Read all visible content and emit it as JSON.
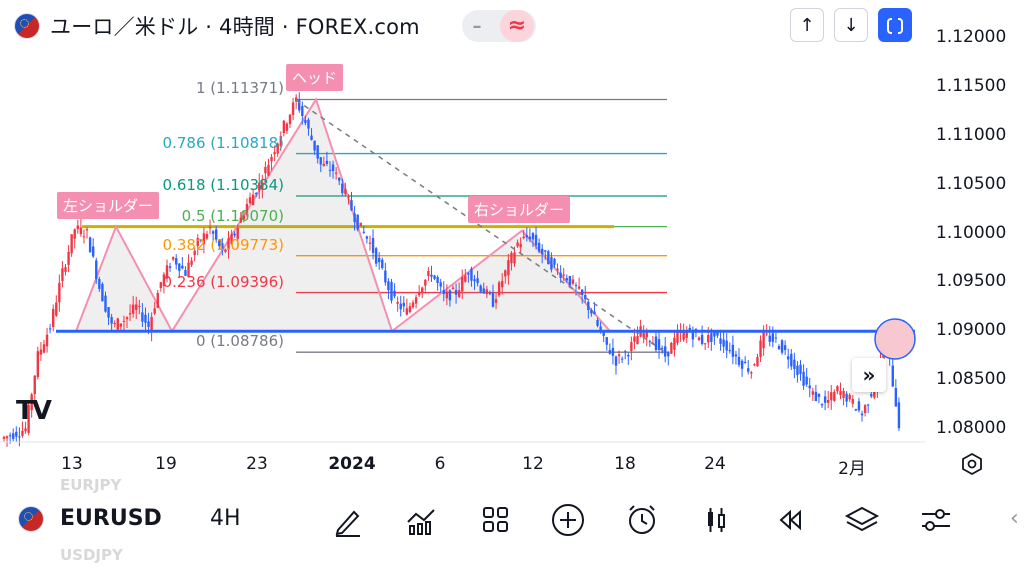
{
  "header": {
    "title": "ユーロ／米ドル · 4時間 · FOREX.com",
    "minus_icon": "minus-icon",
    "wave_icon": "approx-icon",
    "buttons": [
      {
        "name": "arrow-up-button",
        "glyph": "↑"
      },
      {
        "name": "arrow-down-button",
        "glyph": "↓"
      },
      {
        "name": "fullscreen-button",
        "glyph": "⛶"
      }
    ]
  },
  "price_axis": [
    "1.12000",
    "1.11500",
    "1.11000",
    "1.10500",
    "1.10000",
    "1.09500",
    "1.09000",
    "1.08500",
    "1.08000"
  ],
  "time_axis": [
    {
      "label": "13",
      "bold": false
    },
    {
      "label": "19",
      "bold": false
    },
    {
      "label": "23",
      "bold": false
    },
    {
      "label": "2024",
      "bold": true
    },
    {
      "label": "6",
      "bold": false
    },
    {
      "label": "12",
      "bold": false
    },
    {
      "label": "18",
      "bold": false
    },
    {
      "label": "24",
      "bold": false
    },
    {
      "label": "2月",
      "bold": false
    }
  ],
  "annotations": {
    "left_shoulder": "左ショルダー",
    "head": "ヘッド",
    "right_shoulder": "右ショルダー"
  },
  "fibonacci": [
    {
      "label": "1 (1.11371)",
      "color": "#787b86"
    },
    {
      "label": "0.786 (1.10818)",
      "color": "#26a9c4"
    },
    {
      "label": "0.618 (1.10384)",
      "color": "#089981"
    },
    {
      "label": "0.5 (1.10070)",
      "color": "#4caf50"
    },
    {
      "label": "0.382 (1.09773)",
      "color": "#ff9800"
    },
    {
      "label": "0.236 (1.09396)",
      "color": "#f23645"
    },
    {
      "label": "0 (1.08786)",
      "color": "#787b86"
    }
  ],
  "colors": {
    "neckline": "#2962ff",
    "up_candle": "#f23645",
    "down_candle": "#2962ff",
    "pattern": "#f48fb1"
  },
  "bottom_bar": {
    "symbol": "EURUSD",
    "timeframe": "4H",
    "ghost_top": "EURJPY",
    "ghost_bottom": "USDJPY",
    "icons": [
      "draw-pen-icon",
      "indicators-icon",
      "layouts-grid-icon",
      "add-icon",
      "alert-clock-icon",
      "chart-type-candle-icon",
      "replay-icon",
      "layers-icon",
      "settings-sliders-icon"
    ]
  },
  "chart_data": {
    "type": "candlestick",
    "title": "ユーロ／米ドル · 4時間 · FOREX.com",
    "xlabel": "",
    "ylabel": "",
    "ylim": [
      1.0785,
      1.122
    ],
    "x_ticks": [
      "13",
      "19",
      "23",
      "2024",
      "6",
      "12",
      "18",
      "24",
      "2月"
    ],
    "y_ticks": [
      1.08,
      1.085,
      1.09,
      1.095,
      1.1,
      1.105,
      1.11,
      1.115,
      1.12
    ],
    "neckline": 1.09,
    "fib_levels": [
      1.11371,
      1.10818,
      1.10384,
      1.1007,
      1.09773,
      1.09396,
      1.08786
    ],
    "close_path": [
      1.079,
      1.0795,
      1.08,
      1.0875,
      1.0905,
      1.096,
      1.1005,
      1.1,
      1.0945,
      1.0905,
      1.0912,
      1.0925,
      1.0905,
      1.095,
      1.0975,
      1.096,
      1.099,
      1.1005,
      1.098,
      1.1,
      1.103,
      1.105,
      1.108,
      1.111,
      1.1137,
      1.1105,
      1.107,
      1.1065,
      1.104,
      1.101,
      1.099,
      1.096,
      1.093,
      1.092,
      1.0945,
      1.096,
      1.0935,
      1.094,
      1.0962,
      1.0945,
      1.093,
      1.096,
      1.099,
      1.0998,
      1.098,
      1.0965,
      1.0955,
      1.094,
      1.092,
      1.089,
      1.087,
      1.088,
      1.09,
      1.089,
      1.0875,
      1.0895,
      1.09,
      1.089,
      1.0895,
      1.0885,
      1.087,
      1.086,
      1.0895,
      1.089,
      1.0875,
      1.0855,
      1.0835,
      1.0825,
      1.084,
      1.083,
      1.0815,
      1.0845,
      1.089,
      1.0805
    ]
  }
}
